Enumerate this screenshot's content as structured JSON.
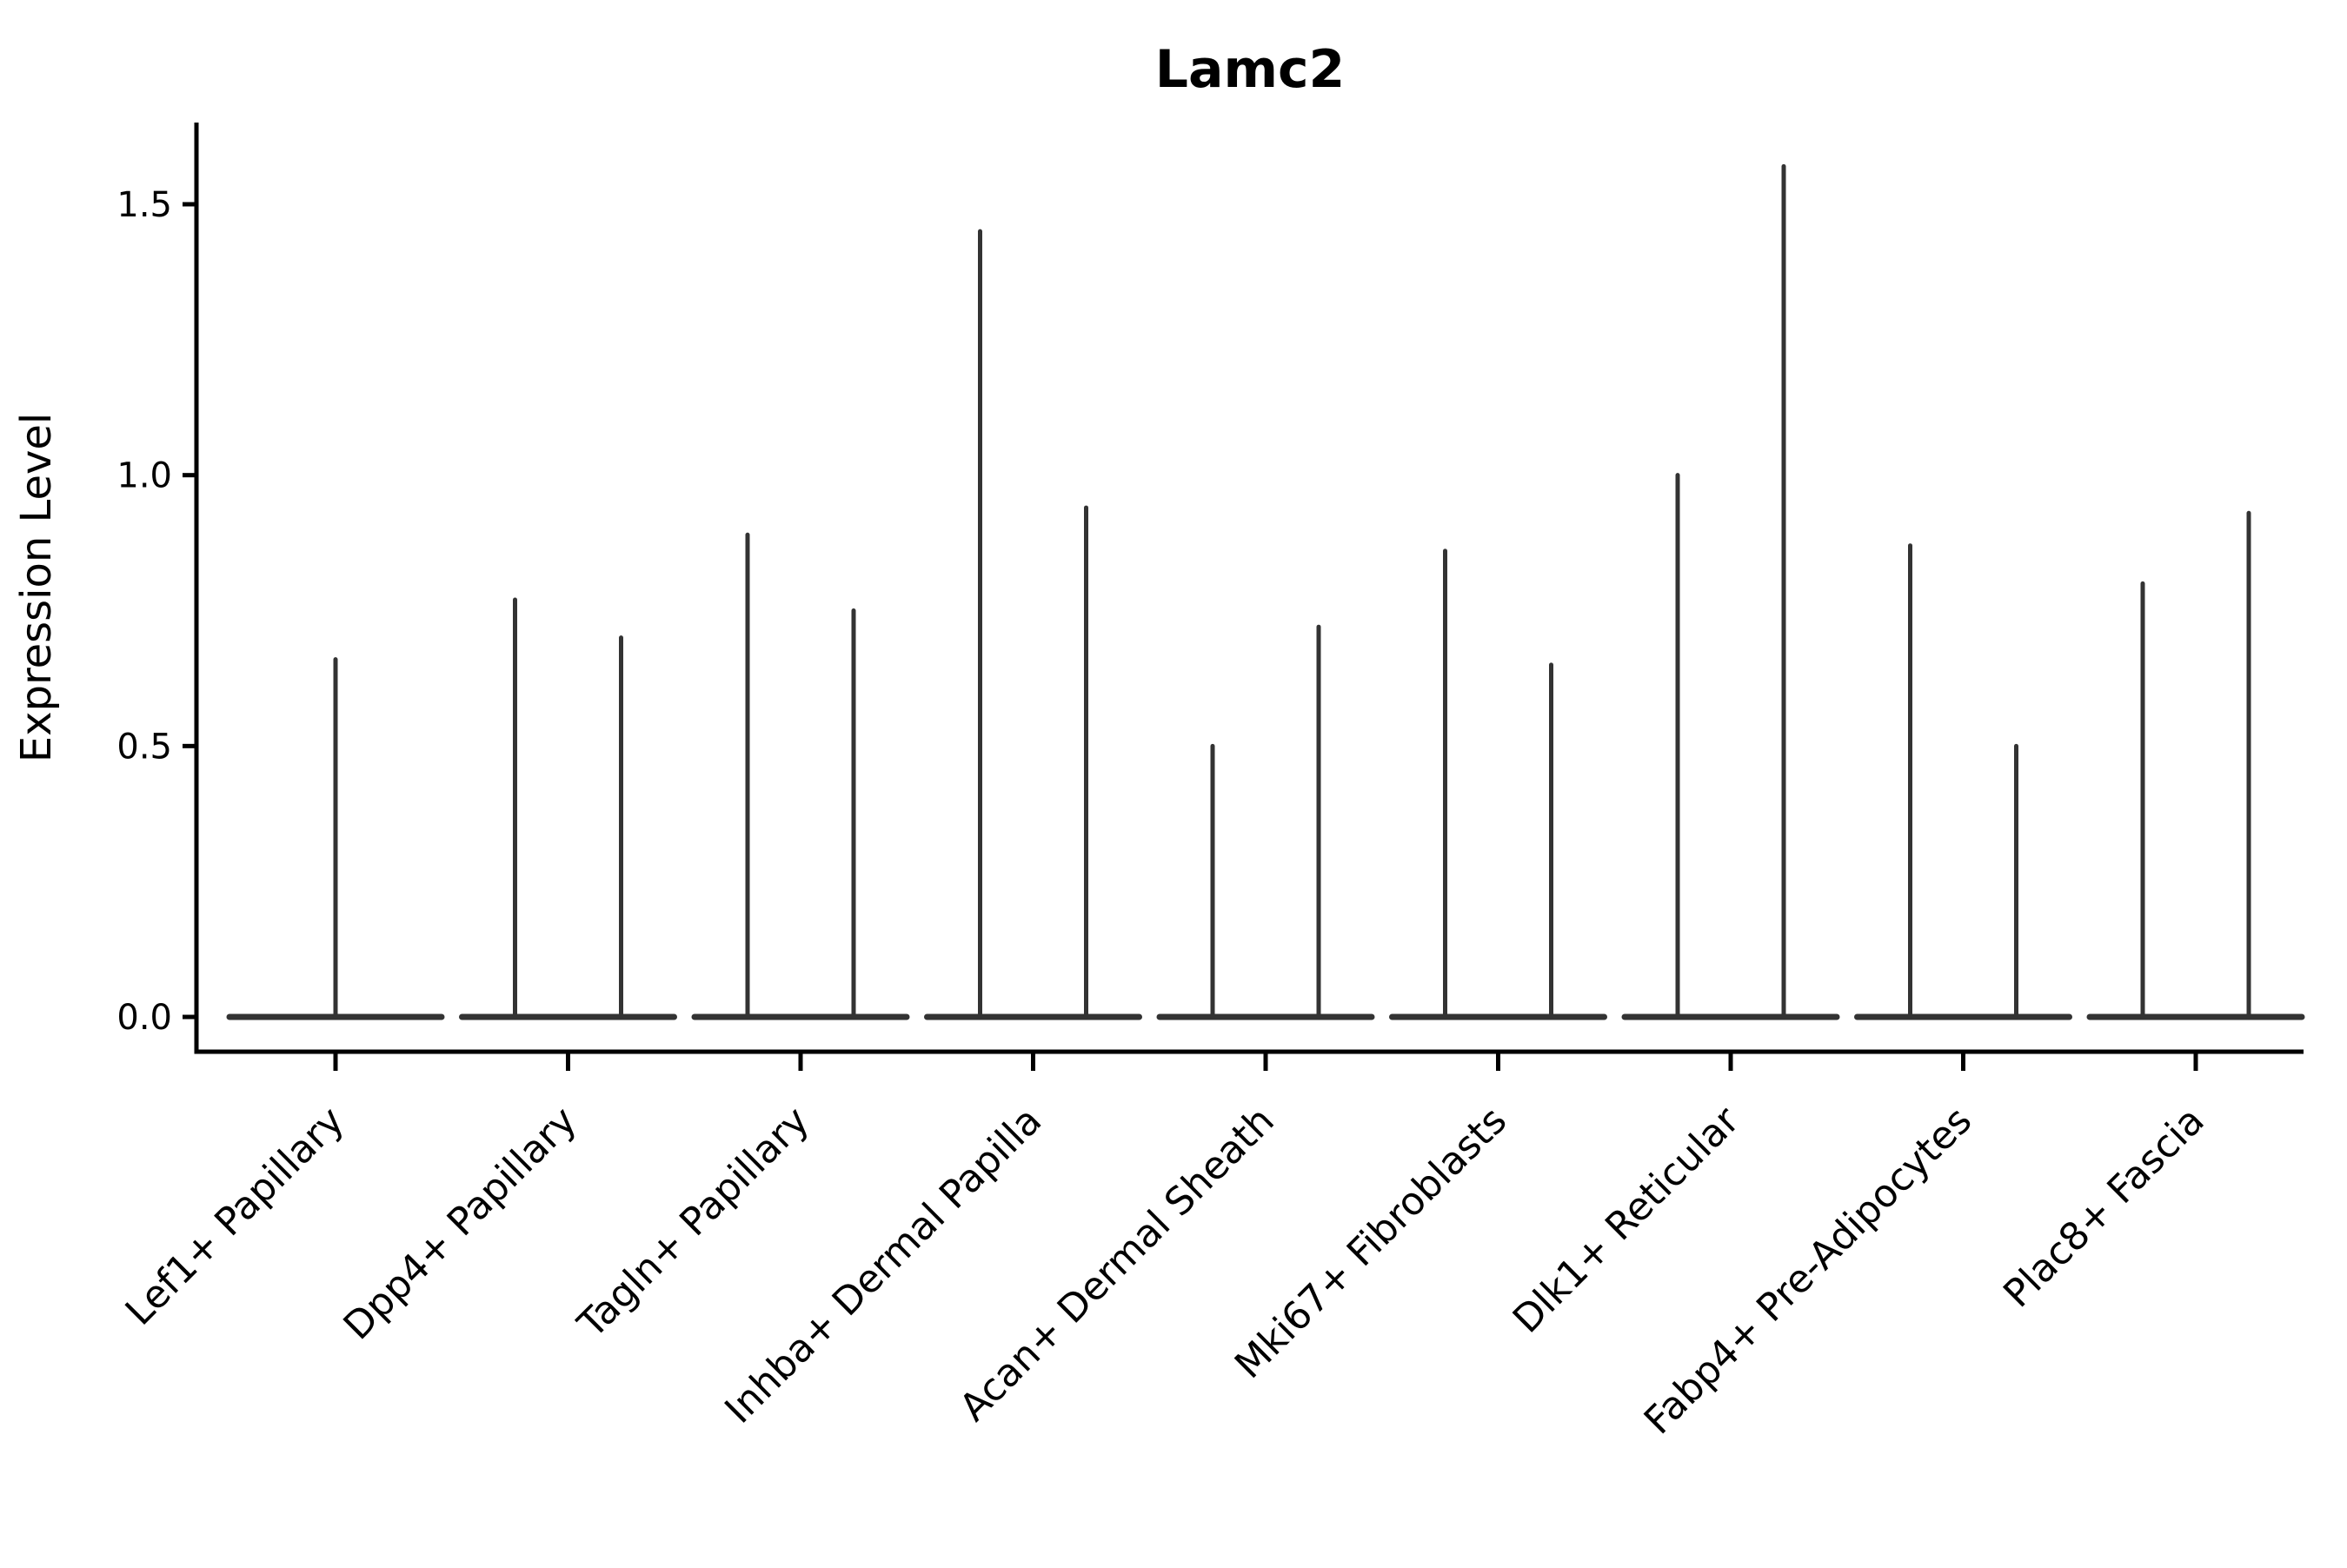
{
  "chart_data": {
    "type": "violin",
    "title": "Lamc2",
    "xlabel": "",
    "ylabel": "Expression Level",
    "yticks": [
      "0.0",
      "0.5",
      "1.0",
      "1.5"
    ],
    "ytick_values": [
      0.0,
      0.5,
      1.0,
      1.5
    ],
    "ylim": [
      -0.06,
      1.65
    ],
    "legend": "none",
    "grid": false,
    "categories": [
      "Lef1+ Papillary",
      "Dpp4+ Papillary",
      "Tagln+ Papillary",
      "Inhba+ Dermal Papilla",
      "Acan+ Dermal Sheath",
      "Mki67+ Fibroblasts",
      "Dlk1+ Reticular",
      "Fabp4+ Pre-Adipocytes",
      "Plac8+ Fascia"
    ],
    "groups": [
      {
        "category": "Lef1+ Papillary",
        "spike_maxima": [
          0.66
        ]
      },
      {
        "category": "Dpp4+ Papillary",
        "spike_maxima": [
          0.77,
          0.7
        ]
      },
      {
        "category": "Tagln+ Papillary",
        "spike_maxima": [
          0.89,
          0.75
        ]
      },
      {
        "category": "Inhba+ Dermal Papilla",
        "spike_maxima": [
          1.45,
          0.94
        ]
      },
      {
        "category": "Acan+ Dermal Sheath",
        "spike_maxima": [
          0.5,
          0.72
        ]
      },
      {
        "category": "Mki67+ Fibroblasts",
        "spike_maxima": [
          0.86,
          0.65
        ]
      },
      {
        "category": "Dlk1+ Reticular",
        "spike_maxima": [
          1.0,
          1.57
        ]
      },
      {
        "category": "Fabp4+ Pre-Adipocytes",
        "spike_maxima": [
          0.87,
          0.5
        ]
      },
      {
        "category": "Plac8+ Fascia",
        "spike_maxima": [
          0.8,
          0.93
        ]
      }
    ],
    "colors": {
      "violin_line": "#333333",
      "axis": "#000000",
      "text": "#000000",
      "background": "#ffffff"
    }
  }
}
